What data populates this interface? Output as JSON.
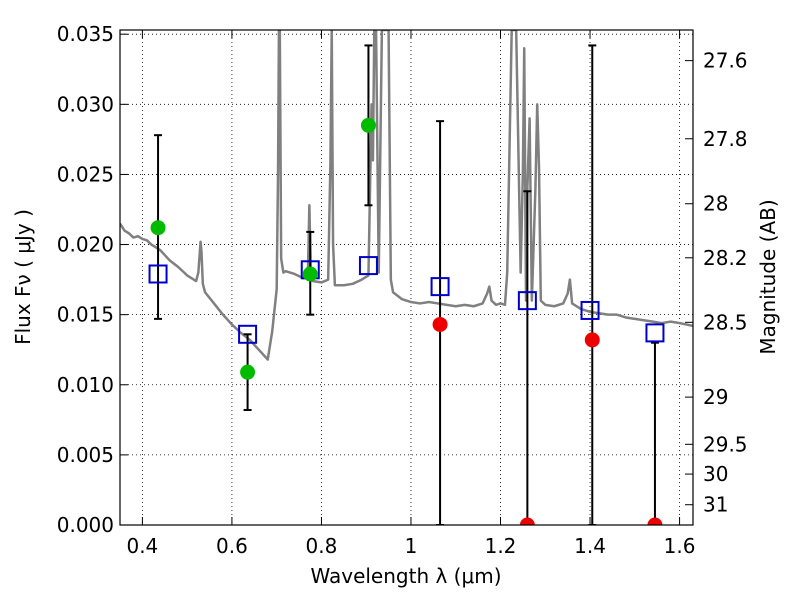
{
  "chart_data": {
    "type": "scatter",
    "xlabel": "Wavelength  λ (μm)",
    "ylabel_left": "Flux  Fν  ( μJy )",
    "ylabel_right": "Magnitude (AB)",
    "xlim": [
      0.35,
      1.63
    ],
    "ylim": [
      0.0,
      0.0353
    ],
    "grid": true,
    "x_ticks": [
      {
        "value": 0.4,
        "label": "0.4"
      },
      {
        "value": 0.6,
        "label": "0.6"
      },
      {
        "value": 0.8,
        "label": "0.8"
      },
      {
        "value": 1.0,
        "label": "1"
      },
      {
        "value": 1.2,
        "label": "1.2"
      },
      {
        "value": 1.4,
        "label": "1.4"
      },
      {
        "value": 1.6,
        "label": "1.6"
      }
    ],
    "y_ticks": [
      {
        "value": 0.0,
        "label": "0.000"
      },
      {
        "value": 0.005,
        "label": "0.005"
      },
      {
        "value": 0.01,
        "label": "0.010"
      },
      {
        "value": 0.015,
        "label": "0.015"
      },
      {
        "value": 0.02,
        "label": "0.020"
      },
      {
        "value": 0.025,
        "label": "0.025"
      },
      {
        "value": 0.03,
        "label": "0.030"
      },
      {
        "value": 0.035,
        "label": "0.035"
      }
    ],
    "right_ticks": [
      {
        "value": 27.6,
        "label": "27.6"
      },
      {
        "value": 27.8,
        "label": "27.8"
      },
      {
        "value": 28.0,
        "label": "28"
      },
      {
        "value": 28.2,
        "label": "28.2"
      },
      {
        "value": 28.5,
        "label": "28.5"
      },
      {
        "value": 29.0,
        "label": "29"
      },
      {
        "value": 29.5,
        "label": "29.5"
      },
      {
        "value": 30.0,
        "label": "30"
      },
      {
        "value": 31.0,
        "label": "31"
      }
    ],
    "template_spectrum": {
      "color": "#808080",
      "x": [
        0.35,
        0.36,
        0.37,
        0.38,
        0.39,
        0.4,
        0.41,
        0.42,
        0.43,
        0.44,
        0.46,
        0.48,
        0.5,
        0.52,
        0.525,
        0.53,
        0.532,
        0.535,
        0.54,
        0.56,
        0.58,
        0.6,
        0.62,
        0.64,
        0.66,
        0.68,
        0.69,
        0.7,
        0.703,
        0.705,
        0.707,
        0.71,
        0.715,
        0.72,
        0.74,
        0.76,
        0.77,
        0.773,
        0.776,
        0.78,
        0.8,
        0.815,
        0.82,
        0.823,
        0.826,
        0.83,
        0.85,
        0.87,
        0.89,
        0.905,
        0.912,
        0.915,
        0.918,
        0.922,
        0.928,
        0.935,
        0.94,
        0.945,
        0.95,
        0.955,
        0.96,
        0.98,
        1.0,
        1.02,
        1.04,
        1.06,
        1.08,
        1.1,
        1.12,
        1.14,
        1.16,
        1.17,
        1.175,
        1.18,
        1.19,
        1.2,
        1.21,
        1.215,
        1.225,
        1.235,
        1.245,
        1.25,
        1.253,
        1.257,
        1.26,
        1.265,
        1.27,
        1.278,
        1.282,
        1.286,
        1.29,
        1.3,
        1.32,
        1.34,
        1.35,
        1.355,
        1.36,
        1.38,
        1.4,
        1.42,
        1.44,
        1.46,
        1.48,
        1.5,
        1.52,
        1.54,
        1.56,
        1.58,
        1.6,
        1.63
      ],
      "y": [
        0.0215,
        0.021,
        0.0208,
        0.0205,
        0.0206,
        0.0204,
        0.0203,
        0.02,
        0.0198,
        0.0196,
        0.0189,
        0.0184,
        0.0178,
        0.0174,
        0.018,
        0.0202,
        0.0195,
        0.0172,
        0.0166,
        0.0158,
        0.015,
        0.0143,
        0.0137,
        0.0132,
        0.0125,
        0.0118,
        0.0138,
        0.0168,
        0.025,
        0.0353,
        0.0353,
        0.019,
        0.018,
        0.0181,
        0.0179,
        0.0176,
        0.0183,
        0.0228,
        0.0182,
        0.0174,
        0.0173,
        0.0175,
        0.0258,
        0.0353,
        0.02,
        0.0171,
        0.0171,
        0.0172,
        0.0175,
        0.0178,
        0.03,
        0.026,
        0.0353,
        0.0353,
        0.018,
        0.0353,
        0.0353,
        0.0353,
        0.0353,
        0.0175,
        0.0166,
        0.0161,
        0.0159,
        0.0158,
        0.0159,
        0.0158,
        0.0157,
        0.0156,
        0.0157,
        0.0156,
        0.0158,
        0.0165,
        0.017,
        0.016,
        0.0157,
        0.0158,
        0.0157,
        0.018,
        0.0353,
        0.0353,
        0.018,
        0.0252,
        0.034,
        0.016,
        0.024,
        0.029,
        0.016,
        0.024,
        0.03,
        0.0255,
        0.016,
        0.0157,
        0.0156,
        0.0158,
        0.0165,
        0.0175,
        0.0158,
        0.0154,
        0.0152,
        0.0151,
        0.015,
        0.015,
        0.0148,
        0.0147,
        0.0146,
        0.0145,
        0.0144,
        0.0145,
        0.0144,
        0.0142
      ]
    },
    "model_points": {
      "marker": "open-square",
      "color": "#0000cc",
      "points": [
        {
          "x": 0.435,
          "y": 0.0179
        },
        {
          "x": 0.635,
          "y": 0.0136
        },
        {
          "x": 0.775,
          "y": 0.0182
        },
        {
          "x": 0.905,
          "y": 0.0185
        },
        {
          "x": 1.065,
          "y": 0.017
        },
        {
          "x": 1.26,
          "y": 0.016
        },
        {
          "x": 1.4,
          "y": 0.0153
        },
        {
          "x": 1.545,
          "y": 0.0137
        }
      ]
    },
    "detections": {
      "marker": "filled-circle",
      "color": "#00bb00",
      "points": [
        {
          "x": 0.435,
          "y": 0.0212,
          "err_low": 0.0147,
          "err_high": 0.0278
        },
        {
          "x": 0.635,
          "y": 0.0109,
          "err_low": 0.0082,
          "err_high": 0.0136
        },
        {
          "x": 0.775,
          "y": 0.0179,
          "err_low": 0.015,
          "err_high": 0.0209
        },
        {
          "x": 0.905,
          "y": 0.0285,
          "err_low": 0.0228,
          "err_high": 0.0342
        }
      ]
    },
    "non_detections": {
      "marker": "filled-circle",
      "color": "#ee0000",
      "points": [
        {
          "x": 1.065,
          "y": 0.0143,
          "err_low": 0.0,
          "err_high": 0.0288
        },
        {
          "x": 1.26,
          "y": 0.0,
          "err_low": 0.0,
          "err_high": 0.0238
        },
        {
          "x": 1.405,
          "y": 0.0132,
          "err_low": 0.0,
          "err_high": 0.0342
        },
        {
          "x": 1.545,
          "y": 0.0,
          "err_low": 0.0,
          "err_high": 0.013
        }
      ]
    }
  }
}
